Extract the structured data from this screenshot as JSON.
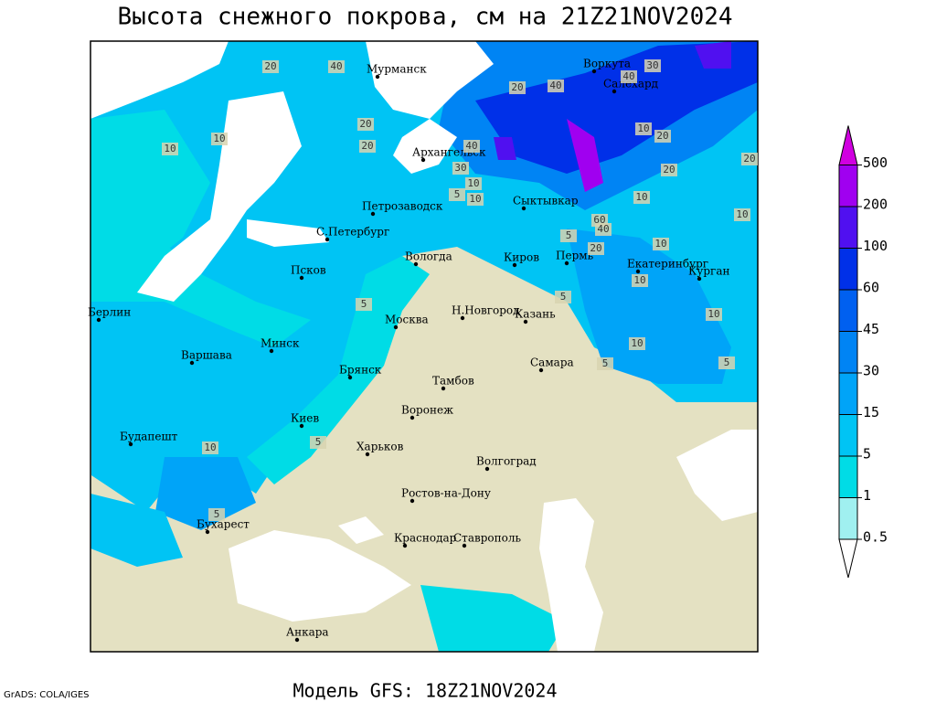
{
  "title": "Высота снежного покрова, см на 21Z21NOV2024",
  "subtitle": "Модель GFS: 18Z21NOV2024",
  "credit": "GrADS: COLA/IGES",
  "legend": {
    "levels": [
      0.5,
      1,
      5,
      15,
      30,
      45,
      60,
      100,
      200,
      500
    ],
    "colors": [
      "#ffffff",
      "#a0f0f0",
      "#00dce6",
      "#00c4f4",
      "#00a4f8",
      "#0084f4",
      "#0060f0",
      "#0030e8",
      "#5010f0",
      "#a000f0",
      "#d000e0"
    ]
  },
  "cities": [
    "Мурманск",
    "Воркута",
    "Салехард",
    "Архангельск",
    "Сыктывкар",
    "Петрозаводск",
    "С.Петербург",
    "Вологда",
    "Киров",
    "Пермь",
    "Екатеринбург",
    "Курган",
    "Псков",
    "Берлин",
    "Москва",
    "Н.Новгород",
    "Казань",
    "Минск",
    "Варшава",
    "Брянск",
    "Самара",
    "Тамбов",
    "Киев",
    "Воронеж",
    "Будапешт",
    "Харьков",
    "Волгоград",
    "Ростов-на-Дону",
    "Бухарест",
    "Краснодар",
    "Ставрополь",
    "Анкара"
  ],
  "contour_labels": [
    10,
    10,
    20,
    40,
    20,
    40,
    40,
    30,
    10,
    20,
    40,
    30,
    20,
    10,
    5,
    10,
    20,
    10,
    60,
    40,
    20,
    5,
    10,
    10,
    5,
    10,
    5,
    5,
    5,
    10,
    5,
    10,
    5,
    10,
    20,
    20
  ]
}
